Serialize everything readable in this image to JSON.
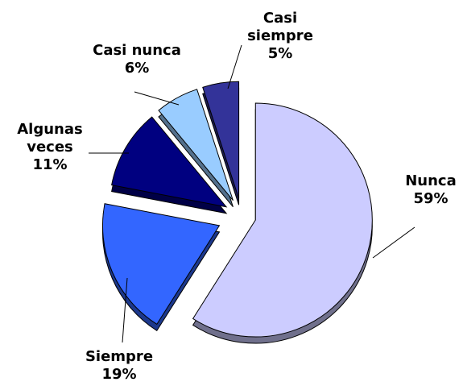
{
  "chart_data": {
    "type": "pie",
    "categories": [
      "Nunca",
      "Siempre",
      "Algunas veces",
      "Casi nunca",
      "Casi siempre"
    ],
    "values": [
      59,
      19,
      11,
      6,
      5
    ],
    "value_labels": [
      "59%",
      "19%",
      "11%",
      "6%",
      "5%"
    ],
    "colors": [
      "#ccccff",
      "#3366ff",
      "#000080",
      "#99ccff",
      "#333399"
    ]
  }
}
